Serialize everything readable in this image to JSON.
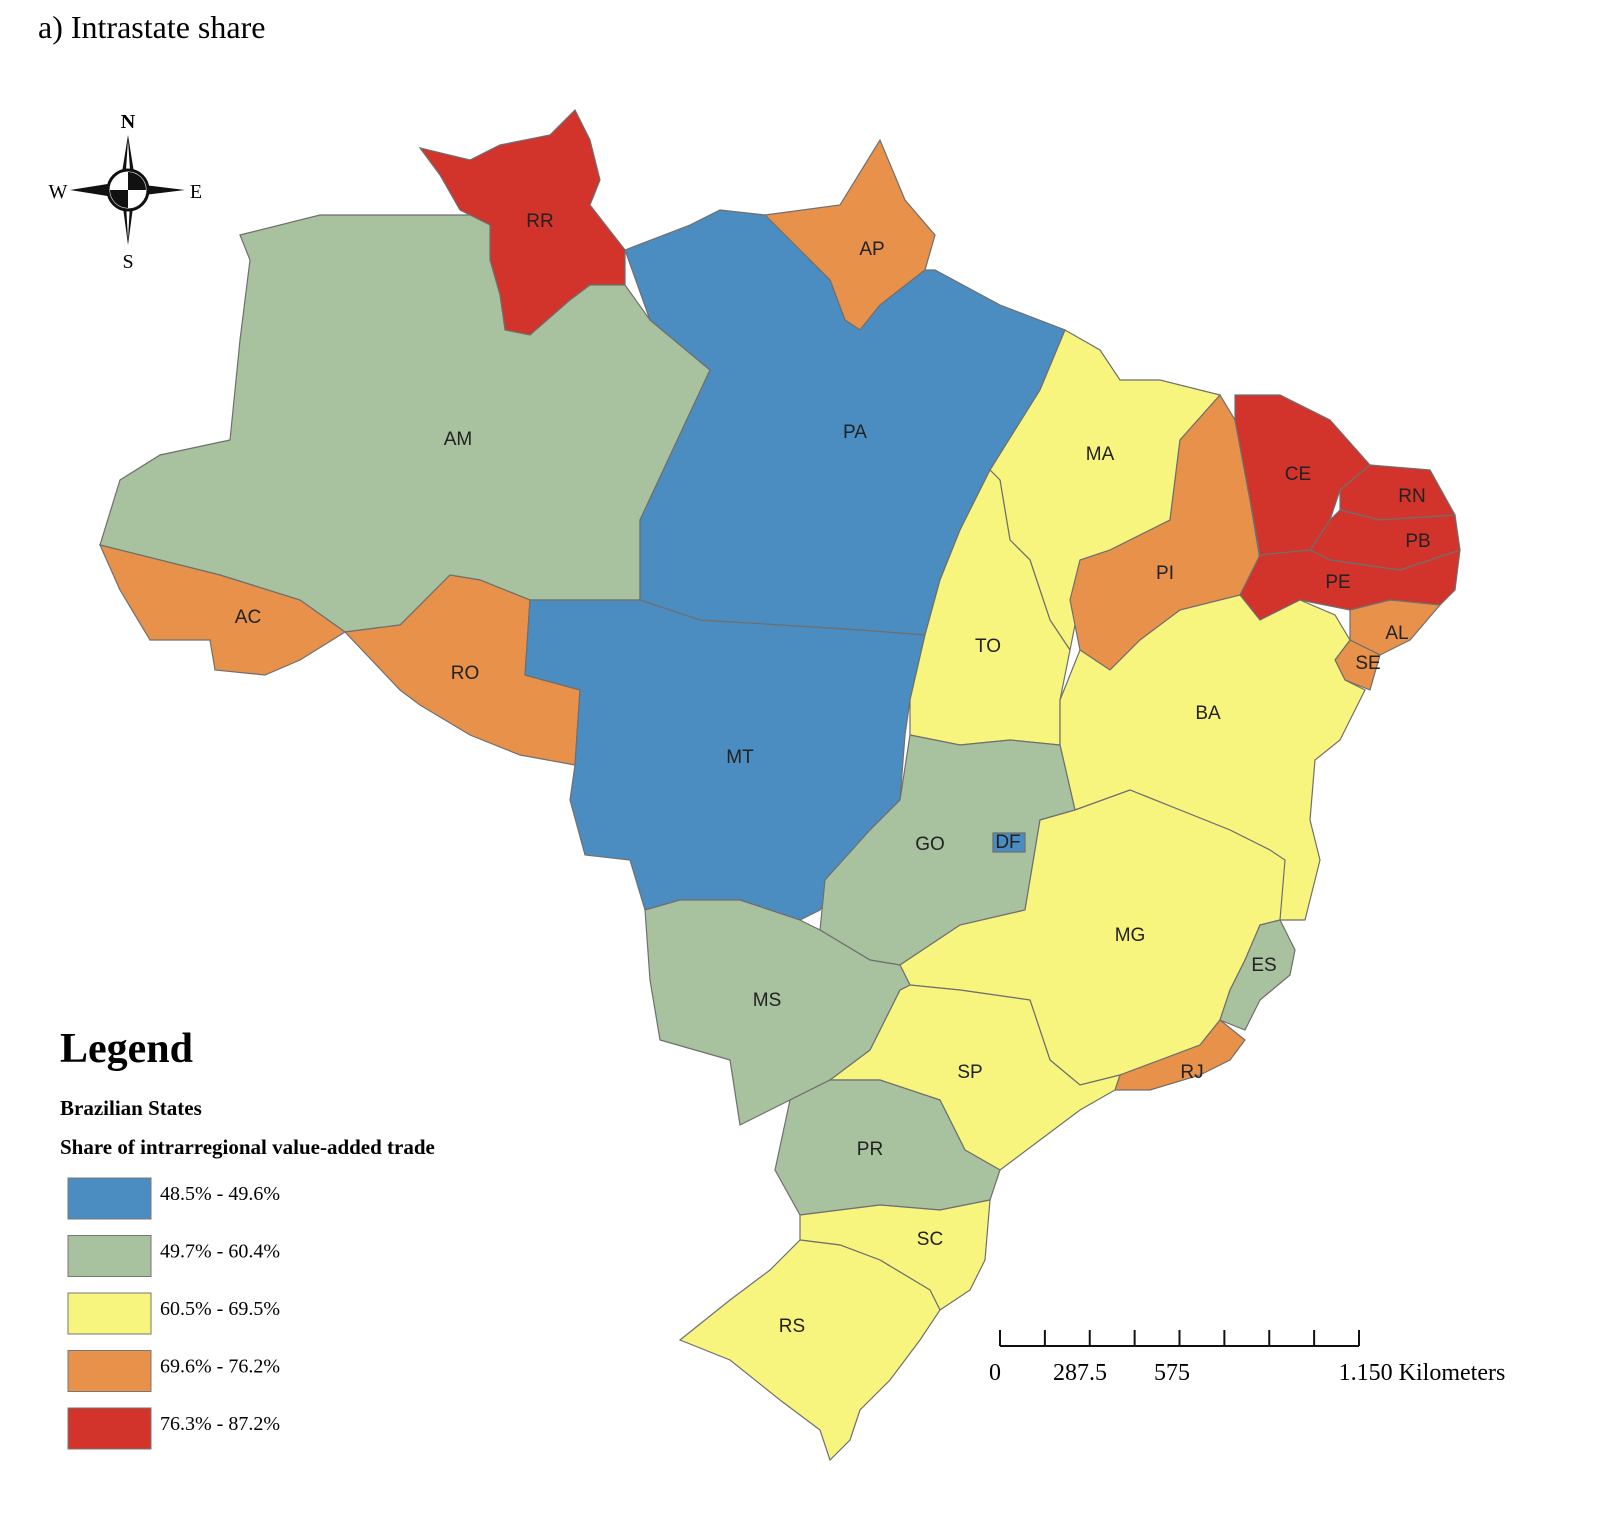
{
  "title": "a) Intrastate share",
  "compass": {
    "north": "N",
    "south": "S",
    "east": "E",
    "west": "W"
  },
  "states": [
    {
      "label": "RR",
      "color": "#d2332b"
    },
    {
      "label": "AP",
      "color": "#e8914b"
    },
    {
      "label": "AM",
      "color": "#a8c19e"
    },
    {
      "label": "AC",
      "color": "#e8914b"
    },
    {
      "label": "RO",
      "color": "#e8914b"
    },
    {
      "label": "PA",
      "color": "#4b8dc0"
    },
    {
      "label": "MT",
      "color": "#4b8dc0"
    },
    {
      "label": "MA",
      "color": "#f8f57e"
    },
    {
      "label": "PI",
      "color": "#e8914b"
    },
    {
      "label": "CE",
      "color": "#d2332b"
    },
    {
      "label": "RN",
      "color": "#d2332b"
    },
    {
      "label": "PB",
      "color": "#d2332b"
    },
    {
      "label": "PE",
      "color": "#d2332b"
    },
    {
      "label": "AL",
      "color": "#e8914b"
    },
    {
      "label": "SE",
      "color": "#e8914b"
    },
    {
      "label": "TO",
      "color": "#f8f57e"
    },
    {
      "label": "BA",
      "color": "#f8f57e"
    },
    {
      "label": "GO",
      "color": "#a8c19e"
    },
    {
      "label": "DF",
      "color": "#4b8dc0"
    },
    {
      "label": "MG",
      "color": "#f8f57e"
    },
    {
      "label": "ES",
      "color": "#a8c19e"
    },
    {
      "label": "RJ",
      "color": "#e8914b"
    },
    {
      "label": "SP",
      "color": "#f8f57e"
    },
    {
      "label": "MS",
      "color": "#a8c19e"
    },
    {
      "label": "PR",
      "color": "#a8c19e"
    },
    {
      "label": "SC",
      "color": "#f8f57e"
    },
    {
      "label": "RS",
      "color": "#f8f57e"
    }
  ],
  "legend": {
    "title": "Legend",
    "layer": "Brazilian States",
    "field": "Share of intrarregional value-added trade",
    "classes": [
      {
        "label": "48.5% - 49.6%",
        "color": "#4b8dc0"
      },
      {
        "label": "49.7% - 60.4%",
        "color": "#a8c19e"
      },
      {
        "label": "60.5% - 69.5%",
        "color": "#f8f57e"
      },
      {
        "label": "69.6% - 76.2%",
        "color": "#e8914b"
      },
      {
        "label": "76.3% - 87.2%",
        "color": "#d2332b"
      }
    ]
  },
  "scale_bar": {
    "labels": [
      "0",
      "287.5",
      "575",
      "1.150 Kilometers"
    ]
  }
}
